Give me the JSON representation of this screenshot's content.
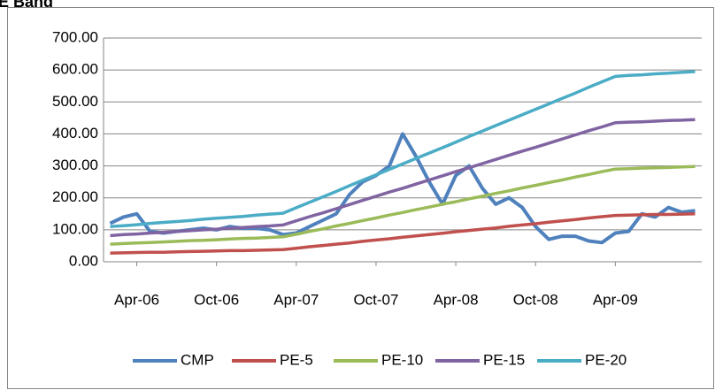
{
  "chart_data": {
    "type": "line",
    "title": "E Band",
    "categories": [
      null,
      null,
      "Apr-06",
      null,
      null,
      null,
      null,
      null,
      "Oct-06",
      null,
      null,
      null,
      null,
      null,
      "Apr-07",
      null,
      null,
      null,
      null,
      null,
      "Oct-07",
      null,
      null,
      null,
      null,
      null,
      "Apr-08",
      null,
      null,
      null,
      null,
      null,
      "Oct-08",
      null,
      null,
      null,
      null,
      null,
      "Apr-09",
      null,
      null,
      null,
      null,
      null,
      null
    ],
    "series": [
      {
        "name": "CMP",
        "color": "#4f81bd",
        "values": [
          120,
          140,
          150,
          95,
          90,
          95,
          100,
          105,
          100,
          110,
          105,
          105,
          100,
          85,
          90,
          110,
          130,
          150,
          210,
          250,
          270,
          300,
          400,
          330,
          250,
          180,
          270,
          300,
          230,
          180,
          200,
          170,
          110,
          70,
          80,
          80,
          65,
          60,
          90,
          95,
          150,
          140,
          170,
          155,
          160
        ]
      },
      {
        "name": "PE-5",
        "color": "#c0504d",
        "values": [
          27,
          28,
          29,
          30,
          30,
          31,
          32,
          33,
          34,
          35,
          35,
          36,
          37,
          38,
          42,
          47,
          51,
          55,
          59,
          64,
          68,
          72,
          77,
          81,
          85,
          89,
          94,
          98,
          102,
          106,
          111,
          115,
          119,
          124,
          128,
          132,
          137,
          141,
          145,
          146,
          147,
          148,
          148,
          149,
          150
        ]
      },
      {
        "name": "PE-10",
        "color": "#9bbb59",
        "values": [
          55,
          57,
          59,
          60,
          62,
          64,
          66,
          67,
          69,
          71,
          73,
          74,
          76,
          78,
          86,
          95,
          103,
          112,
          120,
          129,
          137,
          146,
          154,
          163,
          171,
          180,
          188,
          197,
          205,
          214,
          222,
          231,
          239,
          248,
          256,
          265,
          273,
          282,
          290,
          291,
          293,
          294,
          295,
          297,
          298
        ]
      },
      {
        "name": "PE-15",
        "color": "#8064a2",
        "values": [
          82,
          85,
          87,
          90,
          92,
          95,
          97,
          100,
          102,
          105,
          107,
          110,
          112,
          115,
          128,
          141,
          153,
          166,
          179,
          192,
          205,
          218,
          230,
          243,
          256,
          269,
          282,
          294,
          307,
          320,
          333,
          346,
          358,
          371,
          384,
          397,
          410,
          422,
          435,
          437,
          438,
          440,
          442,
          443,
          445
        ]
      },
      {
        "name": "PE-20",
        "color": "#4bacc6",
        "values": [
          110,
          113,
          116,
          120,
          123,
          126,
          129,
          133,
          136,
          139,
          142,
          146,
          149,
          152,
          169,
          186,
          203,
          220,
          238,
          255,
          272,
          289,
          306,
          323,
          340,
          357,
          374,
          392,
          409,
          426,
          443,
          460,
          477,
          494,
          511,
          528,
          546,
          563,
          580,
          583,
          585,
          588,
          590,
          593,
          595
        ]
      }
    ],
    "ylim": [
      0,
      700
    ],
    "yticks": [
      {
        "value": 0,
        "label": "0.00"
      },
      {
        "value": 100,
        "label": "100.00"
      },
      {
        "value": 200,
        "label": "200.00"
      },
      {
        "value": 300,
        "label": "300.00"
      },
      {
        "value": 400,
        "label": "400.00"
      },
      {
        "value": 500,
        "label": "500.00"
      },
      {
        "value": 600,
        "label": "600.00"
      },
      {
        "value": 700,
        "label": "700.00"
      }
    ],
    "grid": true,
    "legend": "bottom"
  }
}
